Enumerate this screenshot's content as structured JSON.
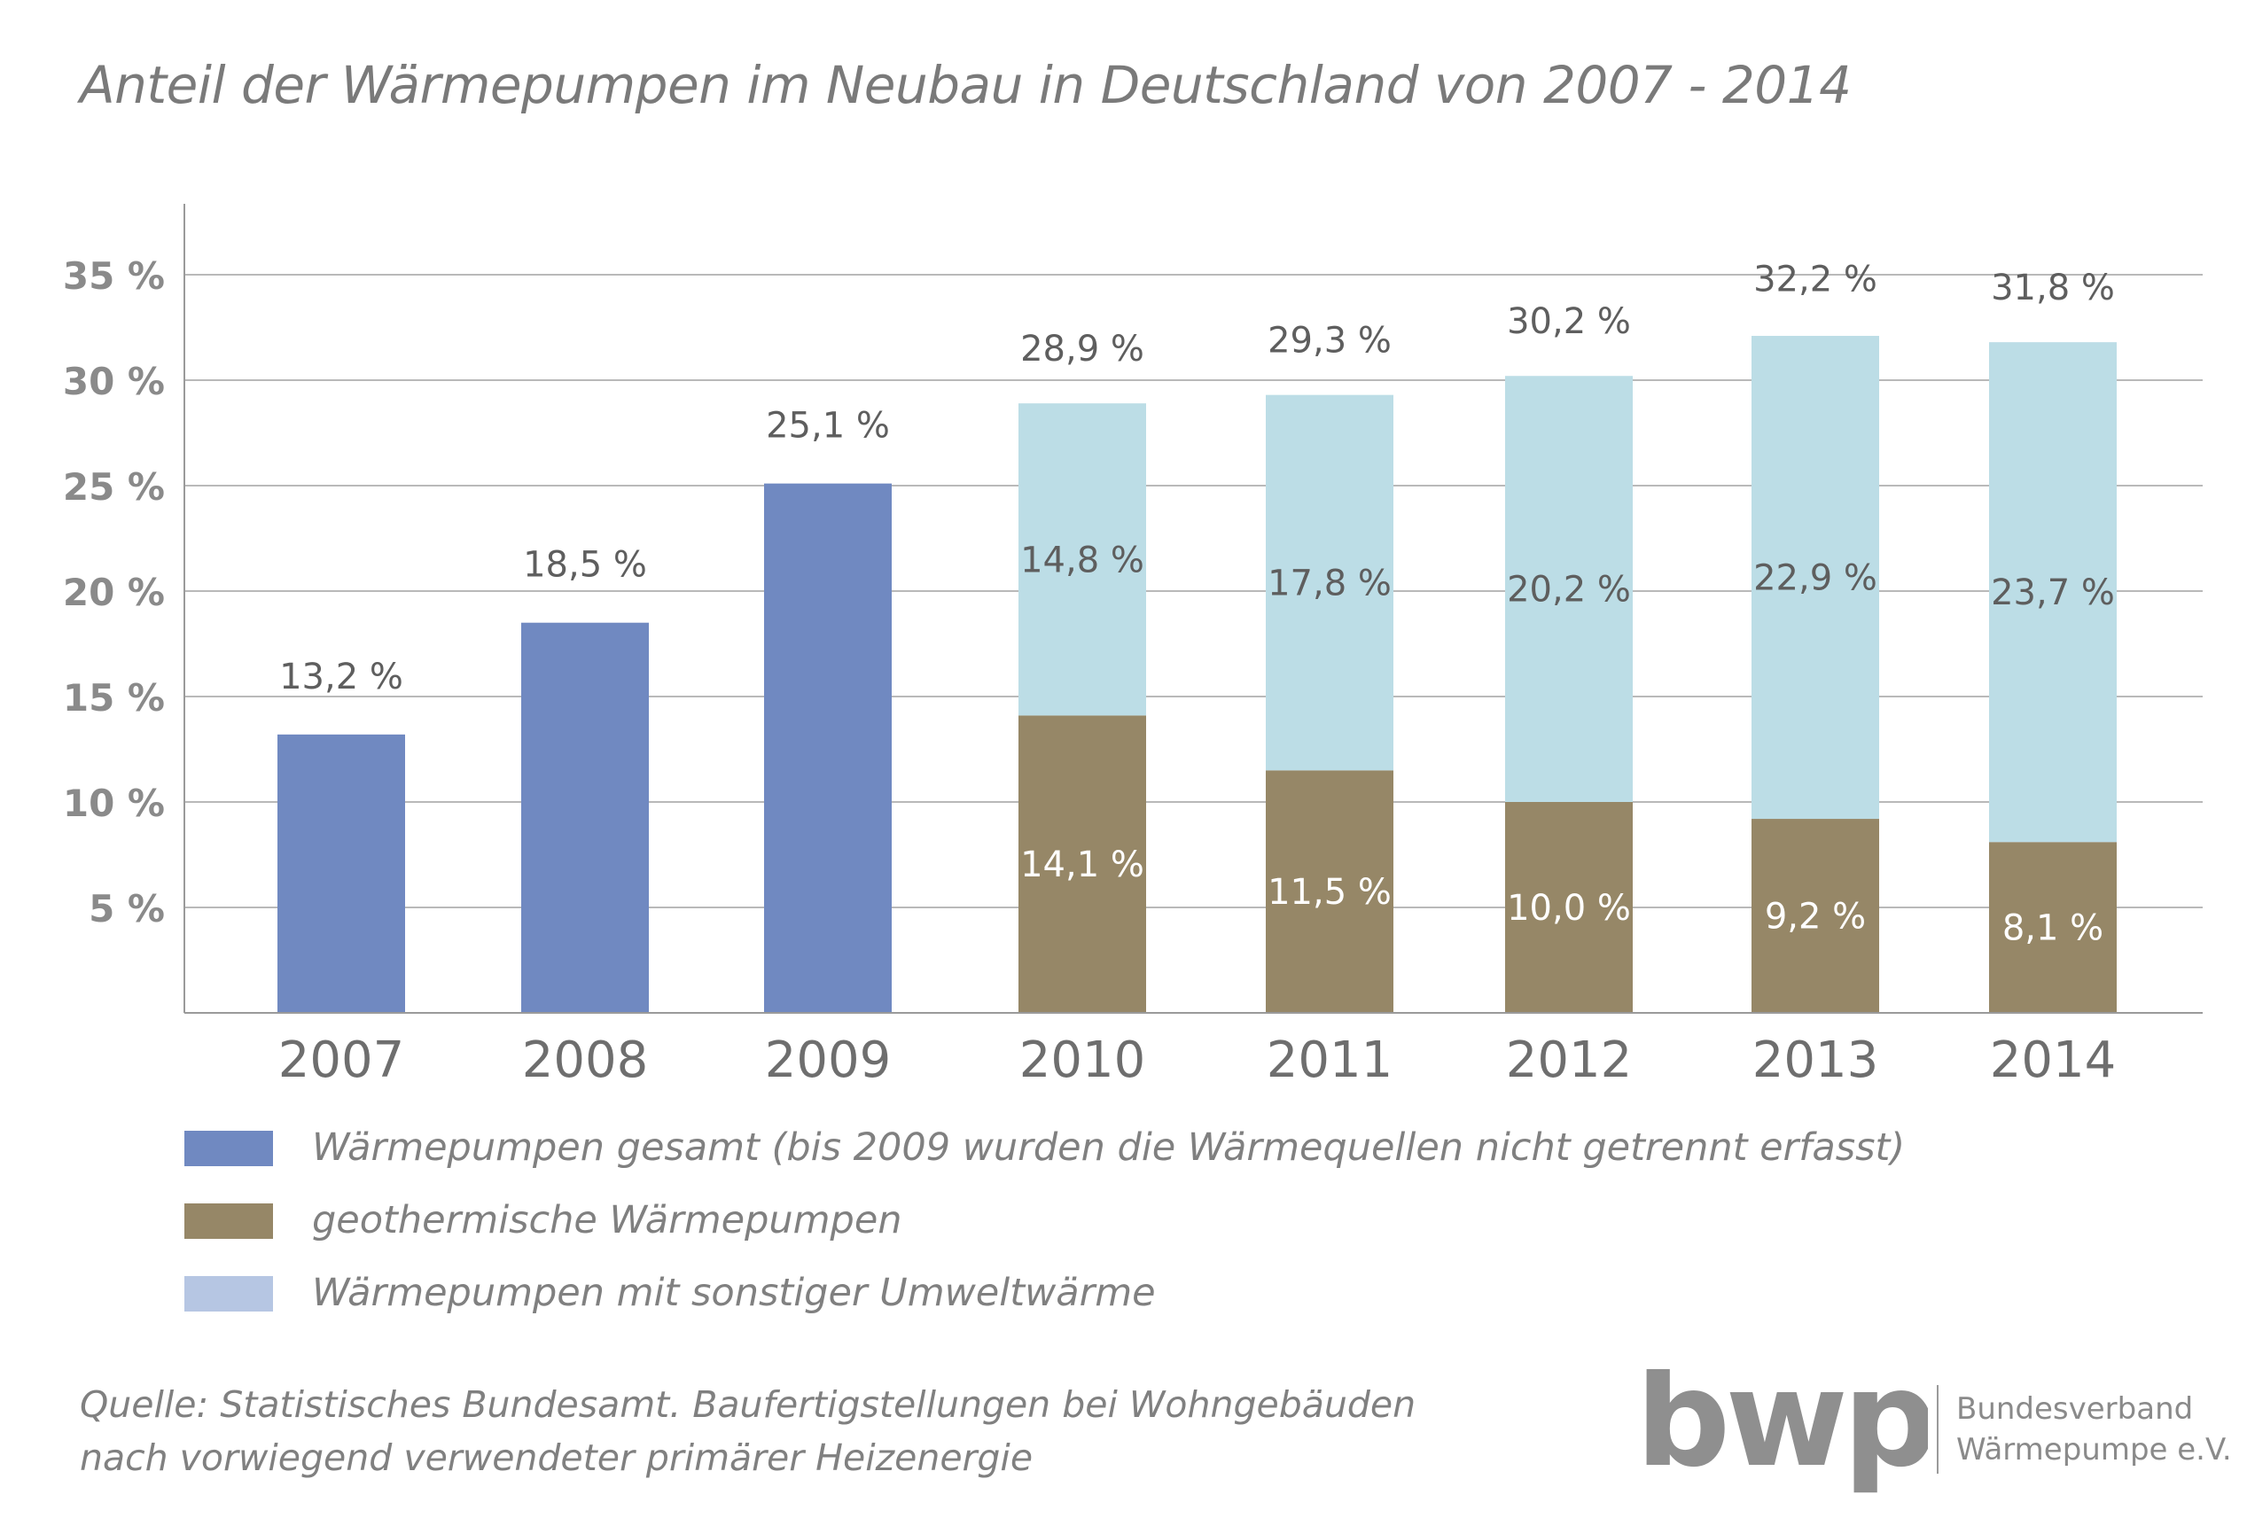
{
  "chart_data": {
    "type": "bar",
    "title": "Anteil der Wärmepumpen im Neubau in Deutschland von 2007 - 2014",
    "categories": [
      "2007",
      "2008",
      "2009",
      "2010",
      "2011",
      "2012",
      "2013",
      "2014"
    ],
    "y_ticks": [
      "5 %",
      "10 %",
      "15 %",
      "20 %",
      "25 %",
      "30 %",
      "35 %"
    ],
    "y_tick_values": [
      5,
      10,
      15,
      20,
      25,
      30,
      35
    ],
    "ylim": [
      0,
      35
    ],
    "grid": true,
    "series": [
      {
        "name": "Wärmepumpen gesamt (bis 2009 wurden die Wärmequellen nicht getrennt erfasst)",
        "values": [
          13.2,
          18.5,
          25.1,
          null,
          null,
          null,
          null,
          null
        ],
        "labels": [
          "13,2 %",
          "18,5 %",
          "25,1 %",
          "",
          "",
          "",
          "",
          ""
        ],
        "color": "#7089c1"
      },
      {
        "name": "geothermische Wärmepumpen",
        "values": [
          null,
          null,
          null,
          14.1,
          11.5,
          10.0,
          9.2,
          8.1
        ],
        "labels": [
          "",
          "",
          "",
          "14,1 %",
          "11,5 %",
          "10,0 %",
          "9,2 %",
          "8,1 %"
        ],
        "color": "#968767"
      },
      {
        "name": "Wärmepumpen mit sonstiger Umweltwärme",
        "values": [
          null,
          null,
          null,
          14.8,
          17.8,
          20.2,
          22.9,
          23.7
        ],
        "labels": [
          "",
          "",
          "",
          "14,8 %",
          "17,8 %",
          "20,2 %",
          "22,9 %",
          "23,7 %"
        ],
        "color": "#bcdde6"
      }
    ],
    "totals": [
      null,
      null,
      null,
      28.9,
      29.3,
      30.2,
      32.2,
      31.8
    ],
    "total_labels": [
      "",
      "",
      "",
      "28,9 %",
      "29,3 %",
      "30,2 %",
      "32,2 %",
      "31,8 %"
    ]
  },
  "legend": [
    {
      "label": "Wärmepumpen gesamt (bis 2009 wurden die Wärmequellen nicht getrennt erfasst)",
      "color": "#7089c1"
    },
    {
      "label": "geothermische Wärmepumpen",
      "color": "#968767"
    },
    {
      "label": "Wärmepumpen mit sonstiger Umweltwärme",
      "color": "#b6c6e3"
    }
  ],
  "source": {
    "line1": "Quelle: Statistisches Bundesamt. Baufertigstellungen bei Wohngebäuden",
    "line2": "nach vorwiegend verwendeter primärer Heizenergie"
  },
  "logo": {
    "mark": "bwp",
    "line1": "Bundesverband",
    "line2": "Wärmepumpe e.V."
  }
}
